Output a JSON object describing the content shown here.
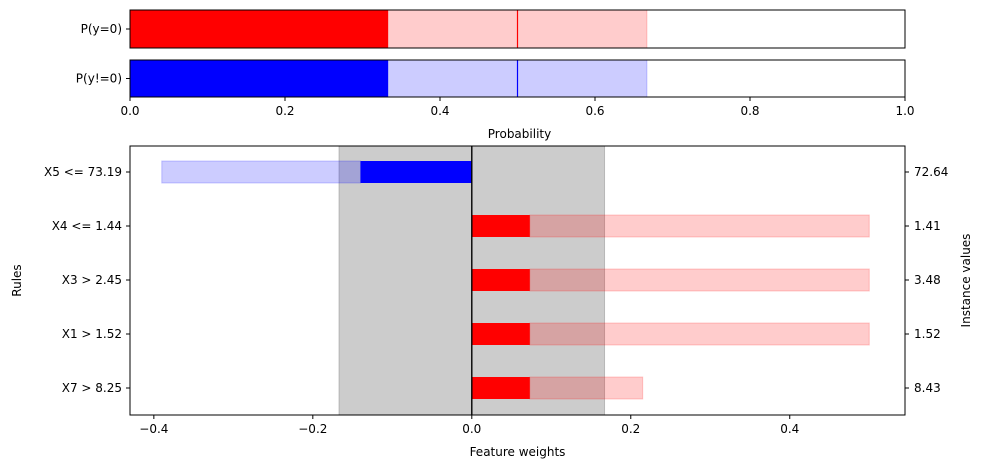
{
  "chart_data": [
    {
      "type": "bar",
      "orientation": "horizontal",
      "title": "",
      "xlabel": "Probability",
      "ylabel": "",
      "xlim": [
        0,
        1
      ],
      "xticks": [
        0.0,
        0.2,
        0.4,
        0.6,
        0.8,
        1.0
      ],
      "xtick_labels": [
        "0.0",
        "0.2",
        "0.4",
        "0.6",
        "0.8",
        "1.0"
      ],
      "categories": [
        "P(y=0)",
        "P(y!=0)"
      ],
      "rows": [
        {
          "label": "P(y=0)",
          "value": 0.333,
          "interval": [
            0.333,
            0.667
          ],
          "marker": 0.5,
          "color": "#ff0000",
          "light_color": "#ffcccc"
        },
        {
          "label": "P(y!=0)",
          "value": 0.333,
          "interval": [
            0.333,
            0.667
          ],
          "marker": 0.5,
          "color": "#0000ff",
          "light_color": "#ccccff"
        }
      ]
    },
    {
      "type": "bar",
      "orientation": "horizontal",
      "title": "",
      "xlabel": "Feature weights",
      "ylabel": "Rules",
      "ylabel_right": "Instance values",
      "xlim": [
        -0.43,
        0.545
      ],
      "xticks": [
        -0.4,
        -0.2,
        0.0,
        0.2,
        0.4
      ],
      "xtick_labels": [
        "−0.4",
        "−0.2",
        "0.0",
        "0.2",
        "0.4"
      ],
      "shaded_band": [
        -0.167,
        0.167
      ],
      "band_color": "#cccccc",
      "rules": [
        {
          "label": "X5 <= 73.19",
          "instance_value": "72.64",
          "weight": -0.14,
          "interval": [
            -0.39,
            -0.14
          ],
          "color": "#0000ff",
          "light_color": "#ccccff"
        },
        {
          "label": "X4 <= 1.44",
          "instance_value": "1.41",
          "weight": 0.073,
          "interval": [
            0.073,
            0.5
          ],
          "color": "#ff0000",
          "light_color": "#ffcccc"
        },
        {
          "label": "X3 > 2.45",
          "instance_value": "3.48",
          "weight": 0.073,
          "interval": [
            0.073,
            0.5
          ],
          "color": "#ff0000",
          "light_color": "#ffcccc"
        },
        {
          "label": "X1 > 1.52",
          "instance_value": "1.52",
          "weight": 0.073,
          "interval": [
            0.073,
            0.5
          ],
          "color": "#ff0000",
          "light_color": "#ffcccc"
        },
        {
          "label": "X7 > 8.25",
          "instance_value": "8.43",
          "weight": 0.073,
          "interval": [
            0.073,
            0.215
          ],
          "color": "#ff0000",
          "light_color": "#ffcccc"
        }
      ]
    }
  ]
}
